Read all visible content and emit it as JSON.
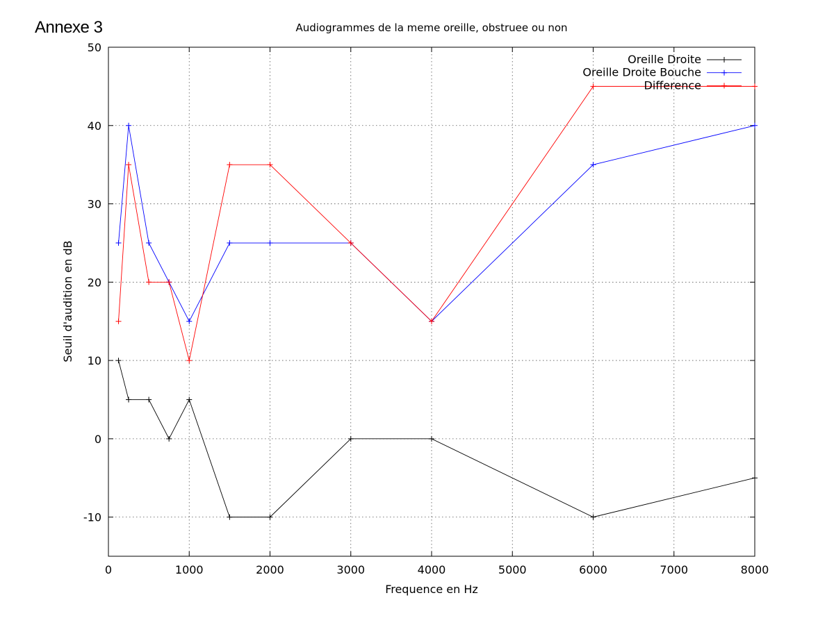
{
  "annex_label": "Annexe 3",
  "chart_data": {
    "type": "line",
    "title": "Audiogrammes de la meme oreille, obstruee ou non",
    "xlabel": "Frequence en Hz",
    "ylabel": "Seuil d'audition en dB",
    "xlim": [
      0,
      8000
    ],
    "ylim": [
      -15,
      50
    ],
    "xticks": [
      0,
      1000,
      2000,
      3000,
      4000,
      5000,
      6000,
      7000,
      8000
    ],
    "yticks": [
      -10,
      0,
      10,
      20,
      30,
      40,
      50
    ],
    "grid": true,
    "legend_position": "top-right",
    "x": [
      125,
      250,
      500,
      750,
      1000,
      1500,
      2000,
      3000,
      4000,
      6000,
      8000
    ],
    "series": [
      {
        "name": "Oreille Droite",
        "color": "#000000",
        "values": [
          10,
          5,
          5,
          0,
          5,
          -10,
          -10,
          0,
          0,
          -10,
          -5
        ]
      },
      {
        "name": "Oreille Droite Bouche",
        "color": "#0000ff",
        "values": [
          25,
          40,
          25,
          20,
          15,
          25,
          25,
          25,
          15,
          35,
          40
        ]
      },
      {
        "name": "Difference",
        "color": "#ff0000",
        "values": [
          15,
          35,
          20,
          20,
          10,
          35,
          35,
          25,
          15,
          45,
          45
        ]
      }
    ]
  }
}
